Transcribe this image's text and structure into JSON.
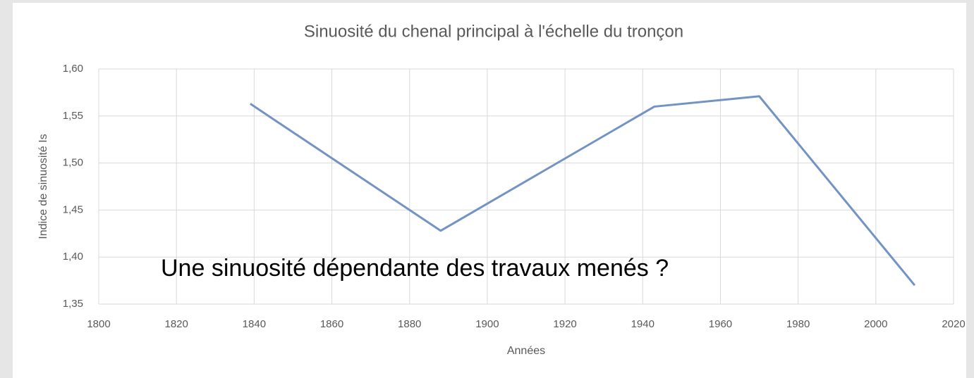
{
  "chart_data": {
    "type": "line",
    "title": "Sinuosité du chenal principal à l'échelle du tronçon",
    "x_label": "Années",
    "y_label": "Indice de sinuosité Is",
    "annotation": "Une sinuosité dépendante des travaux menés ?",
    "x": [
      1839,
      1888,
      1943,
      1970,
      2010
    ],
    "values": [
      1.563,
      1.428,
      1.56,
      1.571,
      1.37
    ],
    "color": "#7393c4",
    "xlim": [
      1800,
      2020
    ],
    "xticks": [
      1800,
      1820,
      1840,
      1860,
      1880,
      1900,
      1920,
      1940,
      1960,
      1980,
      2000,
      2020
    ],
    "ylim": [
      1.35,
      1.6
    ],
    "yticks": [
      {
        "value": 1.35,
        "label": "1,35"
      },
      {
        "value": 1.4,
        "label": "1,40"
      },
      {
        "value": 1.45,
        "label": "1,45"
      },
      {
        "value": 1.5,
        "label": "1,50"
      },
      {
        "value": 1.55,
        "label": "1,55"
      },
      {
        "value": 1.6,
        "label": "1,60"
      }
    ],
    "grid": true
  }
}
